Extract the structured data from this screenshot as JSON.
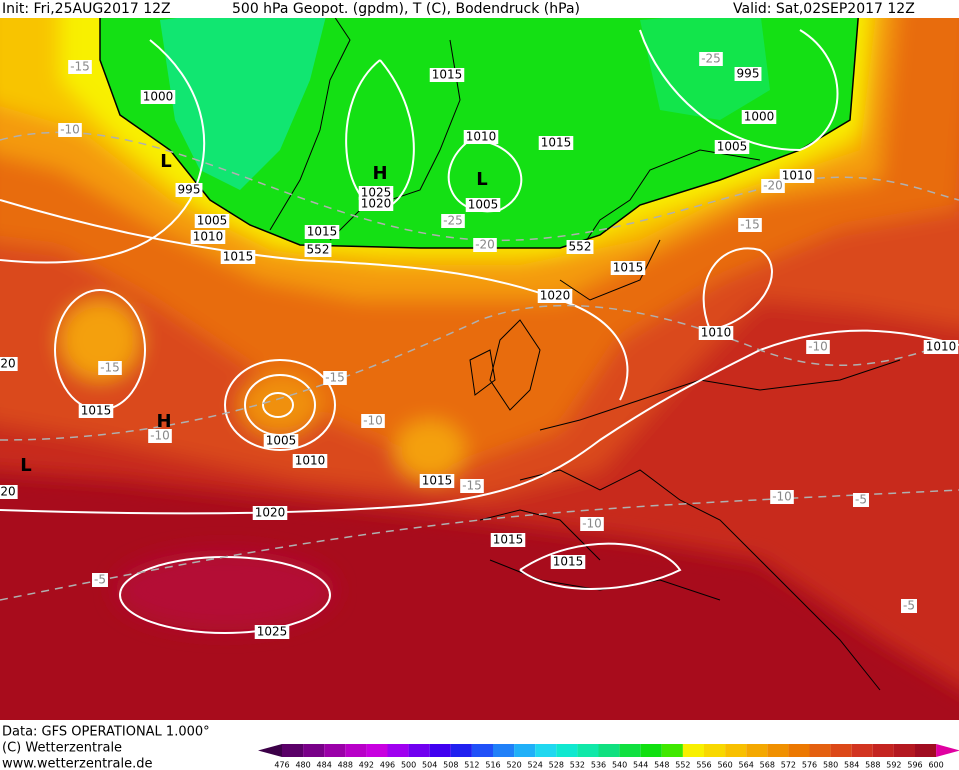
{
  "header": {
    "init": "Init: Fri,25AUG2017 12Z",
    "title": "500 hPa Geopot. (gpdm), T (C), Bodendruck (hPa)",
    "valid": "Valid: Sat,02SEP2017 12Z"
  },
  "footer": {
    "source": "Data: GFS OPERATIONAL 1.000°",
    "copyright": "(C) Wetterzentrale",
    "url": "www.wetterzentrale.de"
  },
  "colorbar": {
    "labels": [
      476,
      480,
      484,
      488,
      492,
      496,
      500,
      504,
      508,
      512,
      516,
      520,
      524,
      528,
      532,
      536,
      540,
      544,
      548,
      552,
      556,
      560,
      564,
      568,
      572,
      576,
      580,
      584,
      588,
      592,
      596,
      600
    ],
    "colors": [
      "#3c0048",
      "#5a0068",
      "#780088",
      "#9a00a8",
      "#b800c8",
      "#c800e0",
      "#a000f0",
      "#7000f0",
      "#4000f0",
      "#2020f0",
      "#2050f8",
      "#2080f8",
      "#20b0f8",
      "#20d8f0",
      "#10e8d0",
      "#10e8a8",
      "#10e080",
      "#10e040",
      "#10e010",
      "#40e800",
      "#f8f000",
      "#f8d800",
      "#f8c000",
      "#f4a800",
      "#f09000",
      "#ec7800",
      "#e46010",
      "#dc4818",
      "#d23420",
      "#c42420",
      "#b41820",
      "#a00c20",
      "#e000a0"
    ]
  },
  "map_labels": [
    "1015",
    "995",
    "-25",
    "1000",
    "-15",
    "1000",
    "-10",
    "1010",
    "1015",
    "1005",
    "L",
    "H",
    "L",
    "1010",
    "-20",
    "995",
    "1025",
    "1020",
    "1005",
    "1005",
    "-25",
    "1010",
    "1015",
    "-20",
    "552",
    "552",
    "1015",
    "-15",
    "1015",
    "1020",
    "1010",
    "-10",
    "1010",
    "-15",
    "-15",
    "1015",
    "H",
    "-10",
    "-10",
    "1005",
    "1010",
    "L",
    "1015",
    "-15",
    "-10",
    "-5",
    "1020",
    "-10",
    "1015",
    "1015",
    "-5",
    "-5",
    "1025",
    "20",
    "20"
  ]
}
